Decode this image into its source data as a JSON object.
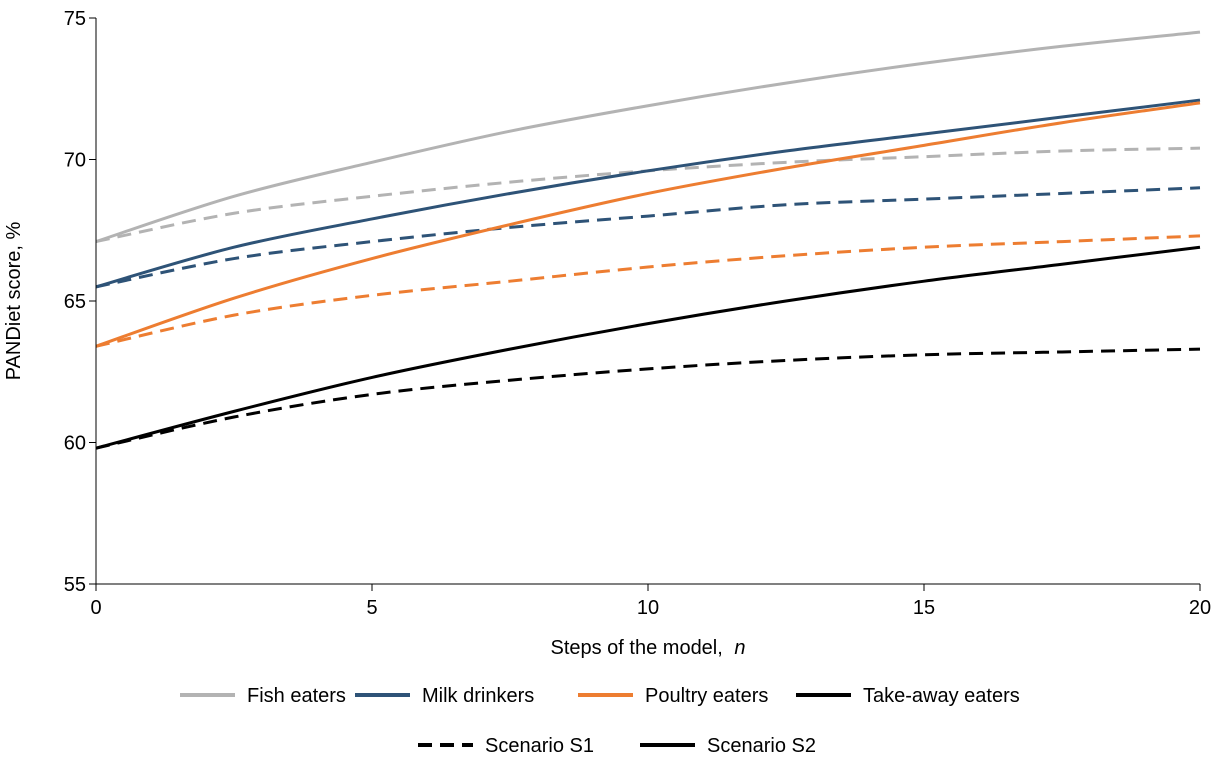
{
  "chart_data": {
    "type": "line",
    "title": "",
    "xlabel": "Steps of the model,",
    "xlabel_italic": "n",
    "ylabel": "PANDiet score, %",
    "xlim": [
      0,
      20
    ],
    "ylim": [
      55,
      75
    ],
    "x_ticks": [
      0,
      5,
      10,
      15,
      20
    ],
    "y_ticks": [
      55,
      60,
      65,
      70,
      75
    ],
    "grid": false,
    "legend_placement": "bottom",
    "groups": [
      {
        "name": "Fish eaters",
        "color": "#b3b3b3"
      },
      {
        "name": "Milk drinkers",
        "color": "#2e5377"
      },
      {
        "name": "Poultry eaters",
        "color": "#ed7d31"
      },
      {
        "name": "Take-away eaters",
        "color": "#000000"
      }
    ],
    "scenarios": [
      {
        "name": "Scenario S1",
        "style": "dashed"
      },
      {
        "name": "Scenario S2",
        "style": "solid"
      }
    ],
    "x": [
      0,
      2.5,
      5,
      7.5,
      10,
      12.5,
      15,
      17.5,
      20
    ],
    "series": [
      {
        "group": "Fish eaters",
        "scenario": "Scenario S2",
        "values": [
          67.1,
          68.7,
          69.9,
          71.0,
          71.9,
          72.7,
          73.4,
          74.0,
          74.5
        ]
      },
      {
        "group": "Fish eaters",
        "scenario": "Scenario S1",
        "values": [
          67.1,
          68.1,
          68.7,
          69.2,
          69.6,
          69.9,
          70.1,
          70.3,
          70.4
        ]
      },
      {
        "group": "Milk drinkers",
        "scenario": "Scenario S2",
        "values": [
          65.5,
          66.9,
          67.9,
          68.8,
          69.6,
          70.3,
          70.9,
          71.5,
          72.1
        ]
      },
      {
        "group": "Milk drinkers",
        "scenario": "Scenario S1",
        "values": [
          65.5,
          66.5,
          67.1,
          67.6,
          68.0,
          68.4,
          68.6,
          68.8,
          69.0
        ]
      },
      {
        "group": "Poultry eaters",
        "scenario": "Scenario S2",
        "values": [
          63.4,
          65.1,
          66.5,
          67.7,
          68.8,
          69.7,
          70.5,
          71.3,
          72.0
        ]
      },
      {
        "group": "Poultry eaters",
        "scenario": "Scenario S1",
        "values": [
          63.4,
          64.5,
          65.2,
          65.7,
          66.2,
          66.6,
          66.9,
          67.1,
          67.3
        ]
      },
      {
        "group": "Take-away eaters",
        "scenario": "Scenario S2",
        "values": [
          59.8,
          61.1,
          62.3,
          63.3,
          64.2,
          65.0,
          65.7,
          66.3,
          66.9
        ]
      },
      {
        "group": "Take-away eaters",
        "scenario": "Scenario S1",
        "values": [
          59.8,
          60.9,
          61.7,
          62.2,
          62.6,
          62.9,
          63.1,
          63.2,
          63.3
        ]
      }
    ]
  }
}
